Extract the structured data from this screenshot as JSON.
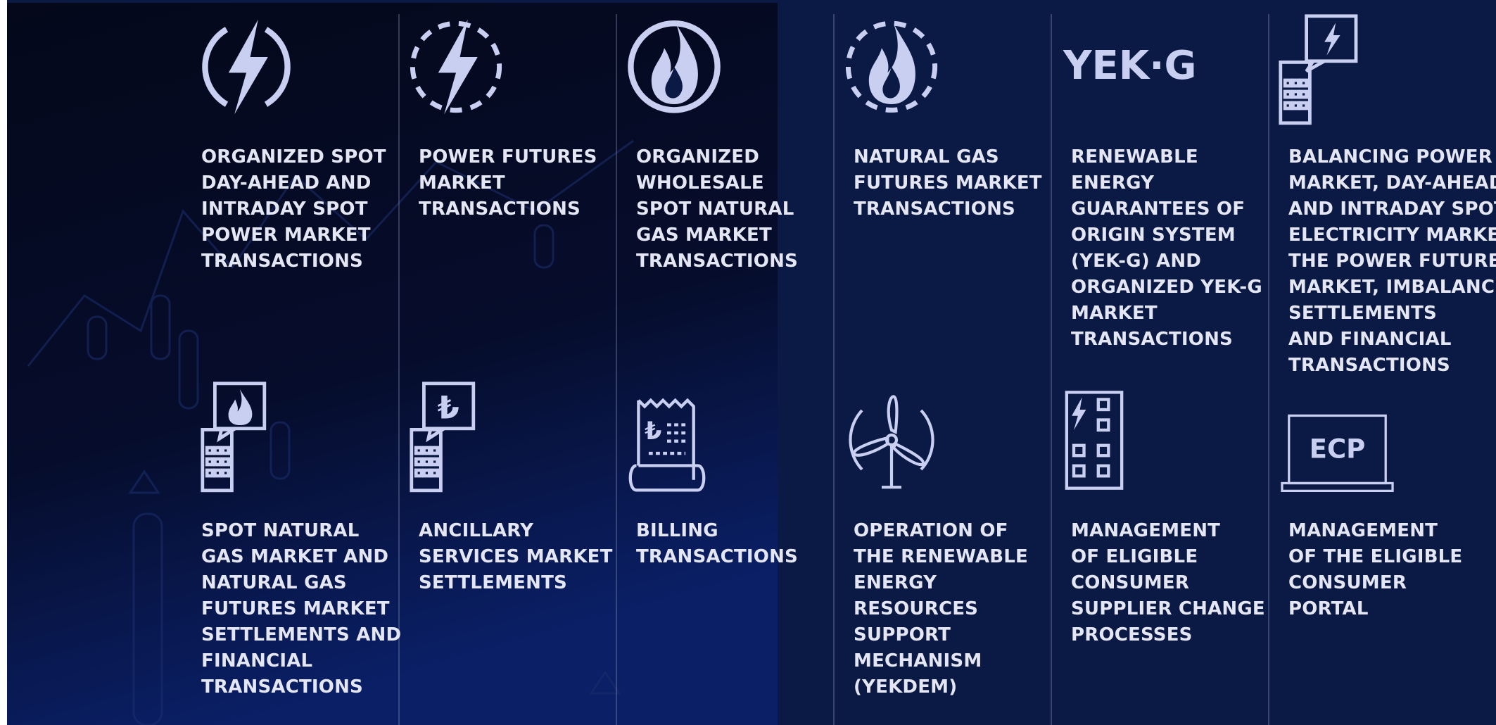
{
  "items": [
    {
      "lines": [
        "ORGANIZED SPOT",
        "DAY-AHEAD AND",
        "INTRADAY SPOT",
        "POWER MARKET",
        "TRANSACTIONS"
      ]
    },
    {
      "lines": [
        "POWER FUTURES",
        "MARKET",
        "TRANSACTIONS"
      ]
    },
    {
      "lines": [
        "ORGANIZED",
        "WHOLESALE",
        "SPOT NATURAL",
        "GAS MARKET",
        "TRANSACTIONS"
      ]
    },
    {
      "lines": [
        "NATURAL GAS",
        "FUTURES MARKET",
        "TRANSACTIONS"
      ]
    },
    {
      "lines": [
        "RENEWABLE",
        "ENERGY",
        "GUARANTEES OF",
        "ORIGIN SYSTEM",
        "(YEK-G) AND",
        "ORGANIZED YEK-G",
        "MARKET",
        "TRANSACTIONS"
      ]
    },
    {
      "lines": [
        "BALANCING POWER",
        "MARKET, DAY-AHEAD",
        "AND INTRADAY SPOT",
        "ELECTRICITY MARKET",
        "THE POWER FUTURES",
        "MARKET, IMBALANCE",
        "SETTLEMENTS",
        "AND FINANCIAL",
        "TRANSACTIONS"
      ]
    },
    {
      "lines": [
        "SPOT NATURAL",
        "GAS MARKET AND",
        "NATURAL GAS",
        "FUTURES MARKET",
        "SETTLEMENTS AND",
        "FINANCIAL",
        "TRANSACTIONS"
      ]
    },
    {
      "lines": [
        "ANCILLARY",
        "SERVICES MARKET",
        "SETTLEMENTS"
      ]
    },
    {
      "lines": [
        "BILLING",
        "TRANSACTIONS"
      ]
    },
    {
      "lines": [
        "OPERATION OF",
        "THE RENEWABLE",
        "ENERGY",
        "RESOURCES",
        "SUPPORT",
        "MECHANISM",
        "(YEKDEM)"
      ]
    },
    {
      "lines": [
        "MANAGEMENT",
        "OF ELIGIBLE",
        "CONSUMER",
        "SUPPLIER CHANGE",
        "PROCESSES"
      ]
    },
    {
      "lines": [
        "MANAGEMENT",
        "OF THE ELIGIBLE",
        "CONSUMER",
        "PORTAL"
      ]
    }
  ],
  "icons": {
    "yekg": "YEK·G",
    "ecp": "ECP",
    "lira": "₺"
  }
}
